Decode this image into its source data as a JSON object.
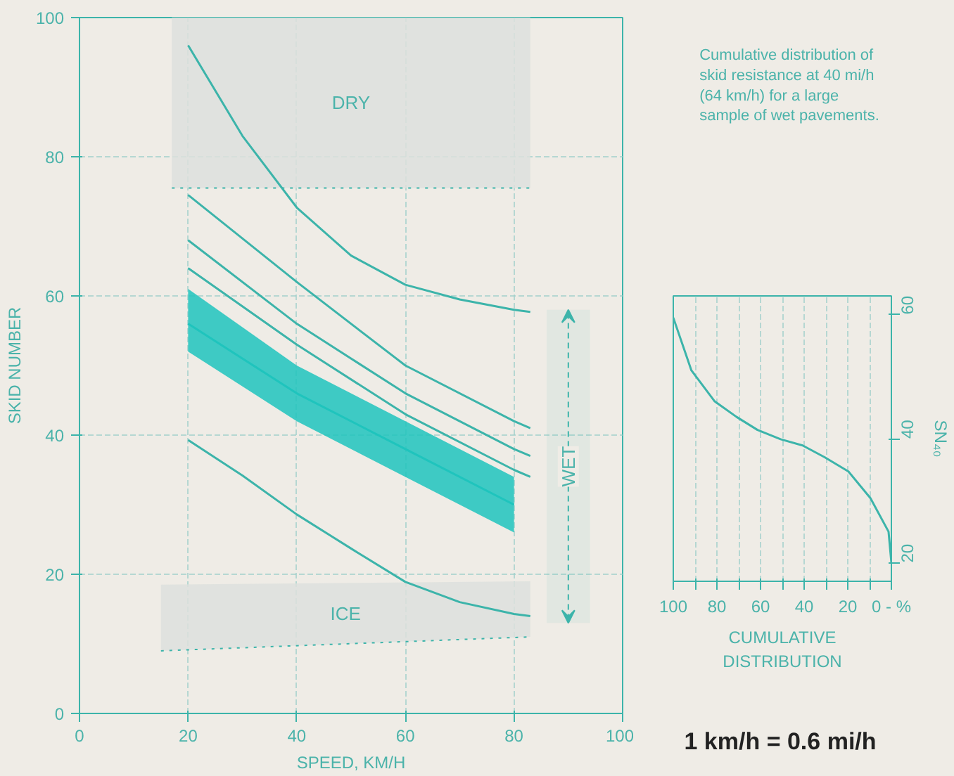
{
  "chart_data": [
    {
      "type": "line",
      "xlabel": "SPEED, KM/H",
      "ylabel": "SKID NUMBER",
      "xlim": [
        0,
        100
      ],
      "ylim": [
        0,
        100
      ],
      "xticks": [
        0,
        20,
        40,
        60,
        80,
        100
      ],
      "yticks": [
        0,
        20,
        40,
        60,
        80,
        100
      ],
      "grid": true,
      "series": [
        {
          "type": "line",
          "color": "#3cb4aa",
          "line_style": "dotted",
          "x": [
            17,
            83
          ],
          "values": [
            75.5,
            75.5
          ],
          "lower": [
            75.5,
            75.5
          ],
          "upper": [
            100,
            100
          ]
        },
        {
          "type": "line",
          "color": "#3cb4aa",
          "line_style": "dotted",
          "x": [
            15,
            83
          ],
          "values": [
            9,
            11
          ],
          "lower": [
            9,
            11
          ],
          "upper": [
            18.5,
            19
          ]
        },
        {
          "type": "line",
          "color": "#3cb4aa",
          "x": [
            20,
            30,
            40,
            50,
            60,
            70,
            80,
            83
          ],
          "values": [
            96,
            83,
            72.7,
            65.8,
            61.6,
            59.5,
            58,
            57.7
          ]
        },
        {
          "type": "line",
          "color": "#3cb4aa",
          "x": [
            20,
            40,
            60,
            80,
            83
          ],
          "values": [
            74.5,
            62,
            50,
            42,
            41
          ]
        },
        {
          "type": "line",
          "color": "#3cb4aa",
          "x": [
            20,
            40,
            60,
            80,
            83
          ],
          "values": [
            68,
            56,
            46,
            38,
            37
          ]
        },
        {
          "type": "line",
          "color": "#3cb4aa",
          "x": [
            20,
            40,
            60,
            80,
            83
          ],
          "values": [
            64,
            53,
            43,
            35,
            34
          ]
        },
        {
          "type": "line",
          "color": "#1fc4bd",
          "x": [
            20,
            40,
            60,
            80
          ],
          "values": [
            56,
            46,
            38,
            30
          ],
          "lower": [
            52,
            42,
            34,
            26
          ],
          "upper": [
            61,
            50,
            42,
            34
          ]
        },
        {
          "type": "line",
          "color": "#3cb4aa",
          "x": [
            20,
            30,
            40,
            50,
            60,
            70,
            80,
            83
          ],
          "values": [
            39.3,
            34.2,
            28.6,
            23.7,
            18.9,
            16,
            14.3,
            14
          ]
        }
      ],
      "annotations": [
        "DRY",
        "ICE"
      ],
      "bands": [
        {
          "axis": "y",
          "from": 13,
          "to": 58,
          "label": "WET",
          "color": "#3cb4aa"
        }
      ]
    },
    {
      "type": "line",
      "xlabel": "CUMULATIVE\nDISTRIBUTION",
      "ylabel": "SN₄₀",
      "xlim": [
        100,
        0
      ],
      "ylim": [
        17,
        63
      ],
      "xticks": [
        100,
        {
          "value": 90,
          "label": null
        },
        80,
        {
          "value": 70,
          "label": null
        },
        60,
        {
          "value": 50,
          "label": null
        },
        40,
        {
          "value": 30,
          "label": null
        },
        20,
        {
          "value": 10,
          "label": null
        },
        {
          "value": 0,
          "label": "0 - %"
        }
      ],
      "yticks": [
        20,
        40,
        60
      ],
      "grid": "x",
      "series": [
        {
          "color": "#3cb4aa",
          "x": [
            100,
            91.7,
            81,
            71,
            61.4,
            50.8,
            40.7,
            30.6,
            19.7,
            9.6,
            1.3,
            0
          ],
          "values": [
            59.5,
            51,
            46,
            43.5,
            41.4,
            39.9,
            38.9,
            37,
            34.7,
            30.4,
            25,
            20
          ]
        }
      ],
      "annotations": [
        "Cumulative distribution of skid resistance at 40 mi/h (64 km/h) for a large sample of wet pavements.",
        "1 km/h = 0.6 mi/h"
      ]
    }
  ]
}
